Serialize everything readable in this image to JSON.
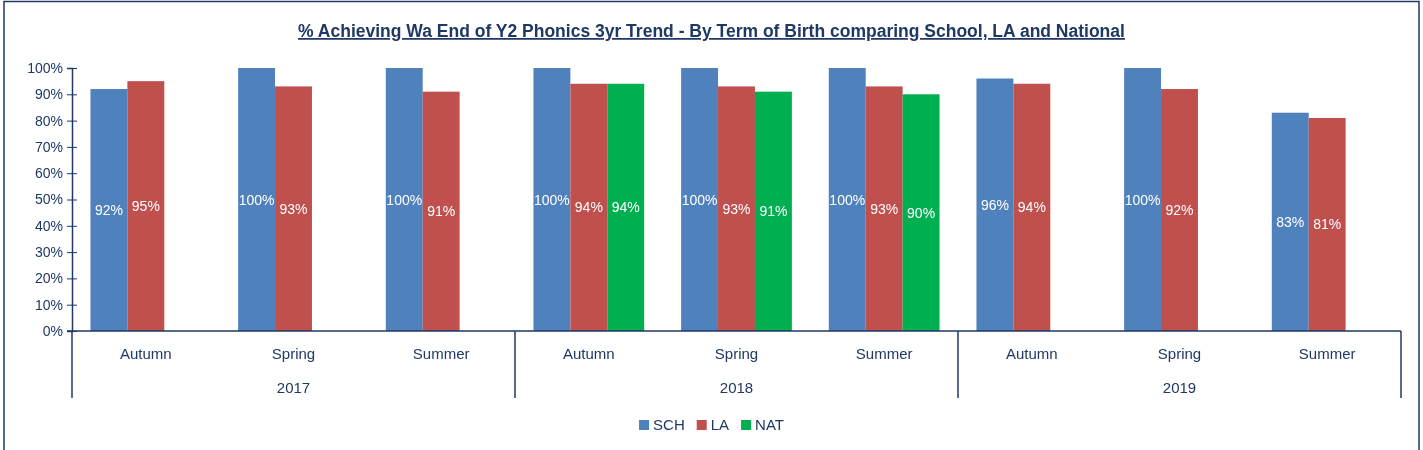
{
  "chart_data": {
    "type": "bar",
    "title": "% Achieving Wa End of Y2 Phonics 3yr Trend - By Term of Birth comparing School, LA and National",
    "categories": [
      "Autumn",
      "Spring",
      "Summer",
      "Autumn",
      "Spring",
      "Summer",
      "Autumn",
      "Spring",
      "Summer"
    ],
    "annotations": [
      "2017",
      "2018",
      "2019"
    ],
    "series": [
      {
        "name": "SCH",
        "color": "#4f81bd",
        "values": [
          92,
          100,
          100,
          100,
          100,
          100,
          96,
          100,
          83
        ],
        "value_labels": [
          "92%",
          "100%",
          "100%",
          "100%",
          "100%",
          "100%",
          "96%",
          "100%",
          "83%"
        ]
      },
      {
        "name": "LA",
        "color": "#c0504d",
        "values": [
          95,
          93,
          91,
          94,
          93,
          93,
          94,
          92,
          81
        ],
        "value_labels": [
          "95%",
          "93%",
          "91%",
          "94%",
          "93%",
          "93%",
          "94%",
          "92%",
          "81%"
        ]
      },
      {
        "name": "NAT",
        "color": "#00b050",
        "values": [
          null,
          null,
          null,
          94,
          91,
          90,
          null,
          null,
          null
        ],
        "value_labels": [
          null,
          null,
          null,
          "94%",
          "91%",
          "90%",
          null,
          null,
          null
        ]
      }
    ],
    "ylim": [
      0,
      100
    ],
    "yticks": [
      {
        "value": 0,
        "label": "0%"
      },
      {
        "value": 10,
        "label": "10%"
      },
      {
        "value": 20,
        "label": "20%"
      },
      {
        "value": 30,
        "label": "30%"
      },
      {
        "value": 40,
        "label": "40%"
      },
      {
        "value": 50,
        "label": "50%"
      },
      {
        "value": 60,
        "label": "60%"
      },
      {
        "value": 70,
        "label": "70%"
      },
      {
        "value": 80,
        "label": "80%"
      },
      {
        "value": 90,
        "label": "90%"
      },
      {
        "value": 100,
        "label": "100%"
      }
    ],
    "legend": "bottom"
  }
}
